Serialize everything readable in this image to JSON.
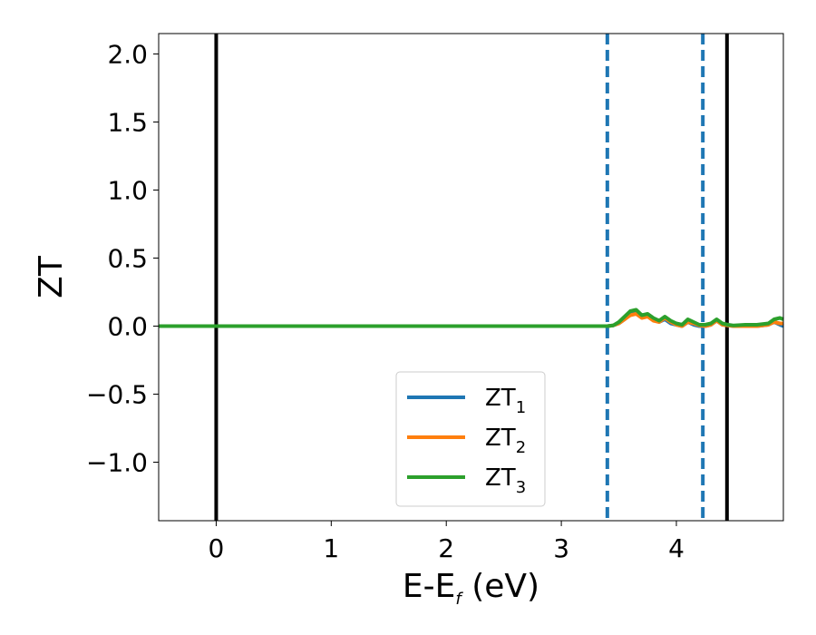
{
  "chart_data": {
    "type": "line",
    "title": "",
    "xlabel": {
      "main": "E-E",
      "sub": "f",
      "unit": " (eV)"
    },
    "ylabel": "ZT",
    "xlim": [
      -0.5,
      4.93
    ],
    "ylim": [
      -1.43,
      2.15
    ],
    "xticks": [
      0,
      1,
      2,
      3,
      4
    ],
    "xtick_labels": [
      "0",
      "1",
      "2",
      "3",
      "4"
    ],
    "yticks": [
      -1.0,
      -0.5,
      0.0,
      0.5,
      1.0,
      1.5,
      2.0
    ],
    "ytick_labels": [
      "−1.0",
      "−0.5",
      "0.0",
      "0.5",
      "1.0",
      "1.5",
      "2.0"
    ],
    "grid": false,
    "legend_position": "lower-center",
    "vlines": [
      {
        "x": 0.0,
        "style": "solid",
        "color": "#000000"
      },
      {
        "x": 3.4,
        "style": "dashed",
        "color": "#1f77b4"
      },
      {
        "x": 4.23,
        "style": "dashed",
        "color": "#1f77b4"
      },
      {
        "x": 4.44,
        "style": "solid",
        "color": "#000000"
      }
    ],
    "series": [
      {
        "name": "ZT",
        "sub": "1",
        "color": "#1f77b4",
        "x": [
          -0.5,
          3.0,
          3.4,
          3.45,
          3.5,
          3.55,
          3.6,
          3.65,
          3.7,
          3.75,
          3.8,
          3.85,
          3.9,
          3.95,
          4.0,
          4.05,
          4.1,
          4.15,
          4.2,
          4.25,
          4.3,
          4.35,
          4.4,
          4.45,
          4.5,
          4.6,
          4.7,
          4.8,
          4.85,
          4.9,
          4.93
        ],
        "y": [
          0.0,
          0.0,
          0.0,
          0.005,
          0.02,
          0.05,
          0.09,
          0.1,
          0.07,
          0.08,
          0.05,
          0.03,
          0.05,
          0.02,
          0.01,
          0.0,
          0.03,
          0.01,
          0.0,
          0.0,
          0.01,
          0.04,
          0.01,
          0.005,
          0.0,
          0.0,
          0.0,
          0.01,
          0.03,
          0.01,
          0.0
        ]
      },
      {
        "name": "ZT",
        "sub": "2",
        "color": "#ff7f0e",
        "x": [
          -0.5,
          3.0,
          3.4,
          3.45,
          3.5,
          3.55,
          3.6,
          3.65,
          3.7,
          3.75,
          3.8,
          3.85,
          3.9,
          3.95,
          4.0,
          4.05,
          4.1,
          4.15,
          4.2,
          4.25,
          4.3,
          4.35,
          4.4,
          4.45,
          4.5,
          4.6,
          4.7,
          4.8,
          4.85,
          4.9,
          4.93
        ],
        "y": [
          0.0,
          0.0,
          0.0,
          0.005,
          0.02,
          0.05,
          0.08,
          0.09,
          0.06,
          0.07,
          0.04,
          0.03,
          0.06,
          0.03,
          0.01,
          0.0,
          0.03,
          0.02,
          0.005,
          0.0,
          0.01,
          0.04,
          0.01,
          0.005,
          0.0,
          0.0,
          0.0,
          0.01,
          0.03,
          0.02,
          0.02
        ]
      },
      {
        "name": "ZT",
        "sub": "3",
        "color": "#2ca02c",
        "x": [
          -0.5,
          3.0,
          3.4,
          3.45,
          3.5,
          3.55,
          3.6,
          3.65,
          3.7,
          3.75,
          3.8,
          3.85,
          3.9,
          3.95,
          4.0,
          4.05,
          4.1,
          4.15,
          4.2,
          4.25,
          4.3,
          4.35,
          4.4,
          4.45,
          4.5,
          4.6,
          4.7,
          4.8,
          4.85,
          4.9,
          4.93
        ],
        "y": [
          0.0,
          0.0,
          0.0,
          0.005,
          0.03,
          0.07,
          0.11,
          0.12,
          0.08,
          0.09,
          0.06,
          0.04,
          0.07,
          0.04,
          0.02,
          0.01,
          0.05,
          0.03,
          0.01,
          0.01,
          0.02,
          0.05,
          0.02,
          0.01,
          0.005,
          0.01,
          0.01,
          0.02,
          0.05,
          0.06,
          0.05
        ]
      }
    ]
  }
}
